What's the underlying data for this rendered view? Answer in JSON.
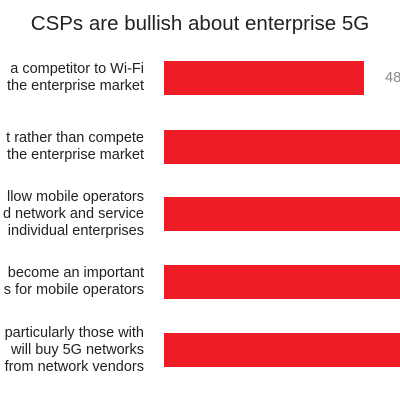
{
  "chart_data": {
    "type": "bar",
    "orientation": "horizontal",
    "title": "CSPs are bullish about enterprise 5G",
    "categories": [
      "a competitor to Wi-Fi\nthe enterprise market",
      "t rather than compete\nthe enterprise market",
      "llow mobile operators\nd network and service\nindividual enterprises",
      "become an important\ns for mobile operators",
      "particularly those with\nwill buy 5G networks\nfrom network vendors"
    ],
    "values": [
      48,
      null,
      null,
      null,
      null
    ],
    "value_labels": [
      "48",
      "",
      "",
      "",
      ""
    ],
    "bar_color": "#ee1c25",
    "xlim": [
      0,
      100
    ]
  }
}
